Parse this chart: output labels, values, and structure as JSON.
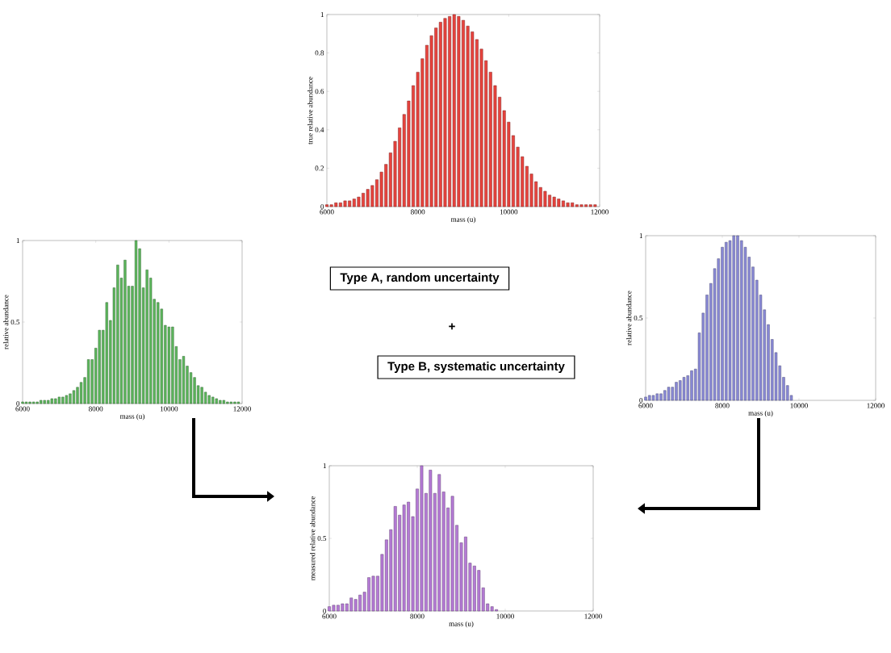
{
  "chart_data": [
    {
      "type": "bar",
      "xlabel": "mass (u)",
      "ylabel": "true relative abundance",
      "color": "#e8433d",
      "xlim": [
        6000,
        12000
      ],
      "ylim": [
        0,
        1
      ],
      "xticks": [
        6000,
        8000,
        10000,
        12000
      ],
      "yticks": [
        0,
        0.2,
        0.4,
        0.6,
        0.8,
        1
      ],
      "x": [
        6000,
        6100,
        6200,
        6300,
        6400,
        6500,
        6600,
        6700,
        6800,
        6900,
        7000,
        7100,
        7200,
        7300,
        7400,
        7500,
        7600,
        7700,
        7800,
        7900,
        8000,
        8100,
        8200,
        8300,
        8400,
        8500,
        8600,
        8700,
        8800,
        8900,
        9000,
        9100,
        9200,
        9300,
        9400,
        9500,
        9600,
        9700,
        9800,
        9900,
        10000,
        10100,
        10200,
        10300,
        10400,
        10500,
        10600,
        10700,
        10800,
        10900,
        11000,
        11100,
        11200,
        11300,
        11400,
        11500,
        11600,
        11700,
        11800,
        11900
      ],
      "values": [
        0.01,
        0.01,
        0.02,
        0.02,
        0.03,
        0.03,
        0.04,
        0.05,
        0.07,
        0.09,
        0.11,
        0.14,
        0.18,
        0.22,
        0.28,
        0.34,
        0.41,
        0.48,
        0.55,
        0.63,
        0.7,
        0.77,
        0.84,
        0.89,
        0.93,
        0.96,
        0.98,
        0.99,
        1,
        0.99,
        0.97,
        0.94,
        0.91,
        0.87,
        0.82,
        0.76,
        0.7,
        0.63,
        0.57,
        0.5,
        0.44,
        0.37,
        0.31,
        0.26,
        0.21,
        0.17,
        0.13,
        0.1,
        0.08,
        0.06,
        0.05,
        0.04,
        0.03,
        0.02,
        0.02,
        0.01,
        0.01,
        0.01,
        0.01,
        0.01
      ]
    },
    {
      "type": "bar",
      "xlabel": "mass (u)",
      "ylabel": "relative abundance",
      "color": "#5cb85c",
      "xlim": [
        6000,
        12000
      ],
      "ylim": [
        0,
        1
      ],
      "xticks": [
        6000,
        8000,
        10000,
        12000
      ],
      "yticks": [
        0,
        0.5,
        1
      ],
      "x": [
        6000,
        6100,
        6200,
        6300,
        6400,
        6500,
        6600,
        6700,
        6800,
        6900,
        7000,
        7100,
        7200,
        7300,
        7400,
        7500,
        7600,
        7700,
        7800,
        7900,
        8000,
        8100,
        8200,
        8300,
        8400,
        8500,
        8600,
        8700,
        8800,
        8900,
        9000,
        9100,
        9200,
        9300,
        9400,
        9500,
        9600,
        9700,
        9800,
        9900,
        10000,
        10100,
        10200,
        10300,
        10400,
        10500,
        10600,
        10700,
        10800,
        10900,
        11000,
        11100,
        11200,
        11300,
        11400,
        11500,
        11600,
        11700,
        11800,
        11900
      ],
      "values": [
        0.01,
        0.01,
        0.01,
        0.01,
        0.01,
        0.02,
        0.02,
        0.02,
        0.03,
        0.03,
        0.04,
        0.04,
        0.05,
        0.06,
        0.08,
        0.1,
        0.13,
        0.16,
        0.27,
        0.27,
        0.34,
        0.45,
        0.45,
        0.62,
        0.51,
        0.71,
        0.85,
        0.77,
        0.88,
        0.72,
        0.72,
        1,
        0.95,
        0.71,
        0.82,
        0.77,
        0.64,
        0.62,
        0.58,
        0.48,
        0.47,
        0.47,
        0.35,
        0.27,
        0.29,
        0.23,
        0.19,
        0.16,
        0.11,
        0.1,
        0.07,
        0.05,
        0.04,
        0.03,
        0.02,
        0.02,
        0.01,
        0.01,
        0.01,
        0.01
      ]
    },
    {
      "type": "bar",
      "xlabel": "mass (u)",
      "ylabel": "relative abundance",
      "color": "#8a8ad8",
      "xlim": [
        6000,
        12000
      ],
      "ylim": [
        0,
        1
      ],
      "xticks": [
        6000,
        8000,
        10000,
        12000
      ],
      "yticks": [
        0,
        0.5,
        1
      ],
      "x": [
        6000,
        6100,
        6200,
        6300,
        6400,
        6500,
        6600,
        6700,
        6800,
        6900,
        7000,
        7100,
        7200,
        7300,
        7400,
        7500,
        7600,
        7700,
        7800,
        7900,
        8000,
        8100,
        8200,
        8300,
        8400,
        8500,
        8600,
        8700,
        8800,
        8900,
        9000,
        9100,
        9200,
        9300,
        9400,
        9500,
        9600,
        9700,
        9800
      ],
      "values": [
        0.02,
        0.03,
        0.03,
        0.04,
        0.04,
        0.06,
        0.08,
        0.08,
        0.11,
        0.12,
        0.14,
        0.15,
        0.18,
        0.19,
        0.41,
        0.53,
        0.64,
        0.71,
        0.8,
        0.86,
        0.93,
        0.96,
        0.97,
        1,
        1,
        0.97,
        0.93,
        0.87,
        0.81,
        0.73,
        0.64,
        0.55,
        0.46,
        0.37,
        0.29,
        0.21,
        0.14,
        0.09,
        0.03
      ]
    },
    {
      "type": "bar",
      "xlabel": "mass (u)",
      "ylabel": "measured relative abundance",
      "color": "#b57ad6",
      "xlim": [
        6000,
        12000
      ],
      "ylim": [
        0,
        1
      ],
      "xticks": [
        6000,
        8000,
        10000,
        12000
      ],
      "yticks": [
        0,
        0.5,
        1
      ],
      "x": [
        6000,
        6100,
        6200,
        6300,
        6400,
        6500,
        6600,
        6700,
        6800,
        6900,
        7000,
        7100,
        7200,
        7300,
        7400,
        7500,
        7600,
        7700,
        7800,
        7900,
        8000,
        8100,
        8200,
        8300,
        8400,
        8500,
        8600,
        8700,
        8800,
        8900,
        9000,
        9100,
        9200,
        9300,
        9400,
        9500,
        9600,
        9700,
        9800
      ],
      "values": [
        0.03,
        0.04,
        0.04,
        0.05,
        0.05,
        0.09,
        0.08,
        0.11,
        0.13,
        0.23,
        0.24,
        0.24,
        0.39,
        0.49,
        0.56,
        0.72,
        0.66,
        0.73,
        0.75,
        0.65,
        0.84,
        1,
        0.81,
        0.97,
        0.81,
        0.94,
        0.82,
        0.71,
        0.79,
        0.59,
        0.47,
        0.51,
        0.33,
        0.31,
        0.28,
        0.16,
        0.05,
        0.03,
        0.01
      ]
    },
    {
      "type": "other",
      "annotations": [
        "Type A, random uncertainty",
        "+",
        "Type B, systematic uncertainty"
      ]
    }
  ]
}
